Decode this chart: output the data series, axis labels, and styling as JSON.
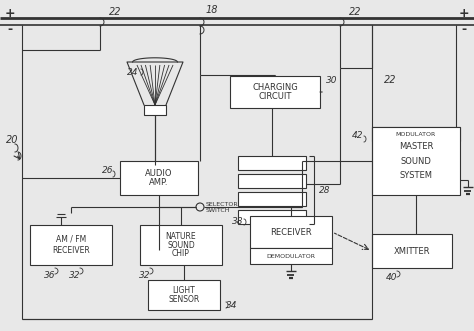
{
  "bg_color": "#e8e8e8",
  "line_color": "#333333",
  "box_color": "#ffffff",
  "labels": {
    "charging_circuit": "CHARGING\nCIRCUIT",
    "audio_amp": "AUDIO\nAMP.",
    "selector_switch": "SELECTOR\nSWITCH",
    "am_fm": "AM / FM\nRECEIVER",
    "nature_sound": "NATURE\nSOUND\nCHIP",
    "receiver": "RECEIVER",
    "demodulator": "DEMODULATOR",
    "light_sensor": "LIGHT\nSENSOR",
    "modulator": "MODULATOR",
    "master_sound": "MASTER\nSOUND\nSYSTEM",
    "xmitter": "XMITTER"
  },
  "refs": {
    "r18": "18",
    "r20": "20",
    "r22a": "22",
    "r22b": "22",
    "r22c": "22",
    "r24": "24",
    "r26": "26",
    "r28": "28",
    "r30": "30",
    "r32": "32",
    "r34": "34",
    "r36": "36",
    "r38": "38",
    "r40": "40",
    "r42": "42"
  }
}
